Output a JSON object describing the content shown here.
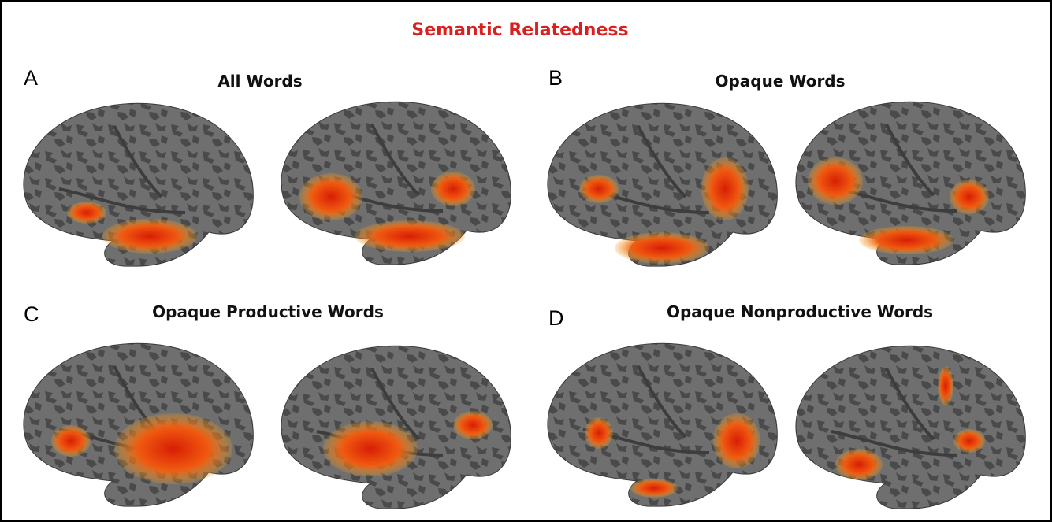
{
  "figure": {
    "title": "Semantic Relatedness",
    "panels": [
      {
        "letter": "A",
        "title": "All Words"
      },
      {
        "letter": "B",
        "title": "Opaque Words"
      },
      {
        "letter": "C",
        "title": "Opaque Productive Words"
      },
      {
        "letter": "D",
        "title": "Opaque Nonproductive Words"
      }
    ]
  }
}
